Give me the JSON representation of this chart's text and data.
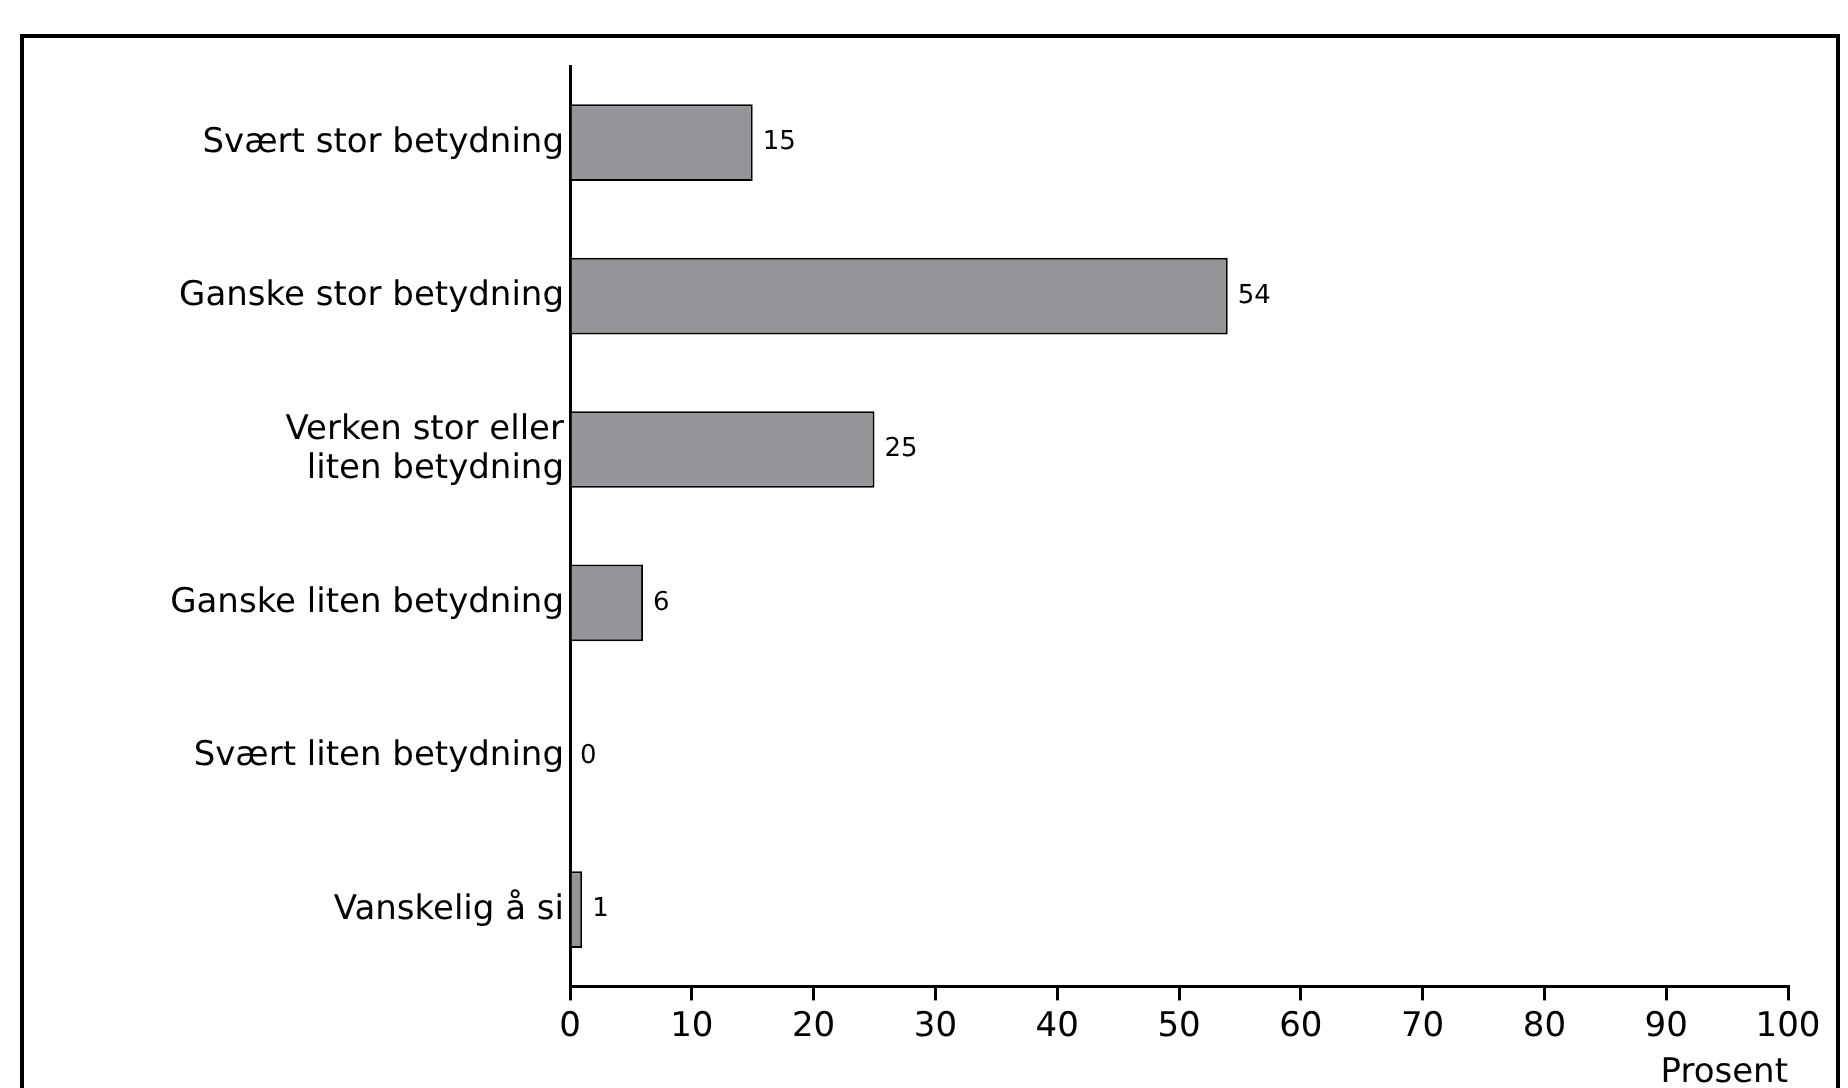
{
  "chart_data": {
    "type": "bar",
    "orientation": "horizontal",
    "xlabel": "Prosent",
    "categories": [
      "Svært stor betydning",
      "Ganske stor betydning",
      "Verken stor eller liten betydning",
      "Ganske liten betydning",
      "Svært liten betydning",
      "Vanskelig å si"
    ],
    "values": [
      15,
      54,
      25,
      6,
      0,
      1
    ],
    "color": "#939598",
    "xlim": [
      0,
      100
    ],
    "xticks": [
      0,
      10,
      20,
      30,
      40,
      50,
      60,
      70,
      80,
      90,
      100
    ],
    "grid": false,
    "legend": false,
    "data_labels": true
  }
}
